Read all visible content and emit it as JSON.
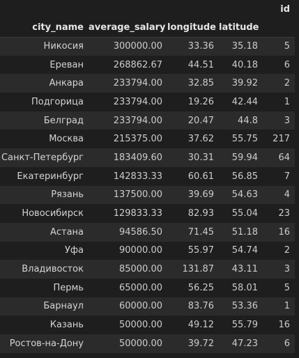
{
  "table": {
    "index_label": "id",
    "columns": [
      "city_name",
      "average_salary",
      "longitude",
      "latitude"
    ],
    "rows": [
      {
        "city_name": "Никосия",
        "average_salary": "300000.00",
        "longitude": "33.36",
        "latitude": "35.18",
        "id": "5"
      },
      {
        "city_name": "Ереван",
        "average_salary": "268862.67",
        "longitude": "44.51",
        "latitude": "40.18",
        "id": "6"
      },
      {
        "city_name": "Анкара",
        "average_salary": "233794.00",
        "longitude": "32.85",
        "latitude": "39.92",
        "id": "2"
      },
      {
        "city_name": "Подгорица",
        "average_salary": "233794.00",
        "longitude": "19.26",
        "latitude": "42.44",
        "id": "1"
      },
      {
        "city_name": "Белград",
        "average_salary": "233794.00",
        "longitude": "20.47",
        "latitude": "44.8",
        "id": "3"
      },
      {
        "city_name": "Москва",
        "average_salary": "215375.00",
        "longitude": "37.62",
        "latitude": "55.75",
        "id": "217"
      },
      {
        "city_name": "Санкт-Петербург",
        "average_salary": "183409.60",
        "longitude": "30.31",
        "latitude": "59.94",
        "id": "64"
      },
      {
        "city_name": "Екатеринбург",
        "average_salary": "142833.33",
        "longitude": "60.61",
        "latitude": "56.85",
        "id": "7"
      },
      {
        "city_name": "Рязань",
        "average_salary": "137500.00",
        "longitude": "39.69",
        "latitude": "54.63",
        "id": "4"
      },
      {
        "city_name": "Новосибирск",
        "average_salary": "129833.33",
        "longitude": "82.93",
        "latitude": "55.04",
        "id": "23"
      },
      {
        "city_name": "Астана",
        "average_salary": "94586.50",
        "longitude": "71.45",
        "latitude": "51.18",
        "id": "16"
      },
      {
        "city_name": "Уфа",
        "average_salary": "90000.00",
        "longitude": "55.97",
        "latitude": "54.74",
        "id": "2"
      },
      {
        "city_name": "Владивосток",
        "average_salary": "85000.00",
        "longitude": "131.87",
        "latitude": "43.11",
        "id": "3"
      },
      {
        "city_name": "Пермь",
        "average_salary": "65000.00",
        "longitude": "56.25",
        "latitude": "58.01",
        "id": "5"
      },
      {
        "city_name": "Барнаул",
        "average_salary": "60000.00",
        "longitude": "83.76",
        "latitude": "53.36",
        "id": "1"
      },
      {
        "city_name": "Казань",
        "average_salary": "50000.00",
        "longitude": "49.12",
        "latitude": "55.79",
        "id": "16"
      },
      {
        "city_name": "Ростов-на-Дону",
        "average_salary": "50000.00",
        "longitude": "39.72",
        "latitude": "47.23",
        "id": "6"
      }
    ]
  },
  "colors": {
    "background": "#1e1e1e",
    "stripe": "#2b2b2b",
    "text": "#cccccc",
    "header_text": "#e6e6e6"
  }
}
